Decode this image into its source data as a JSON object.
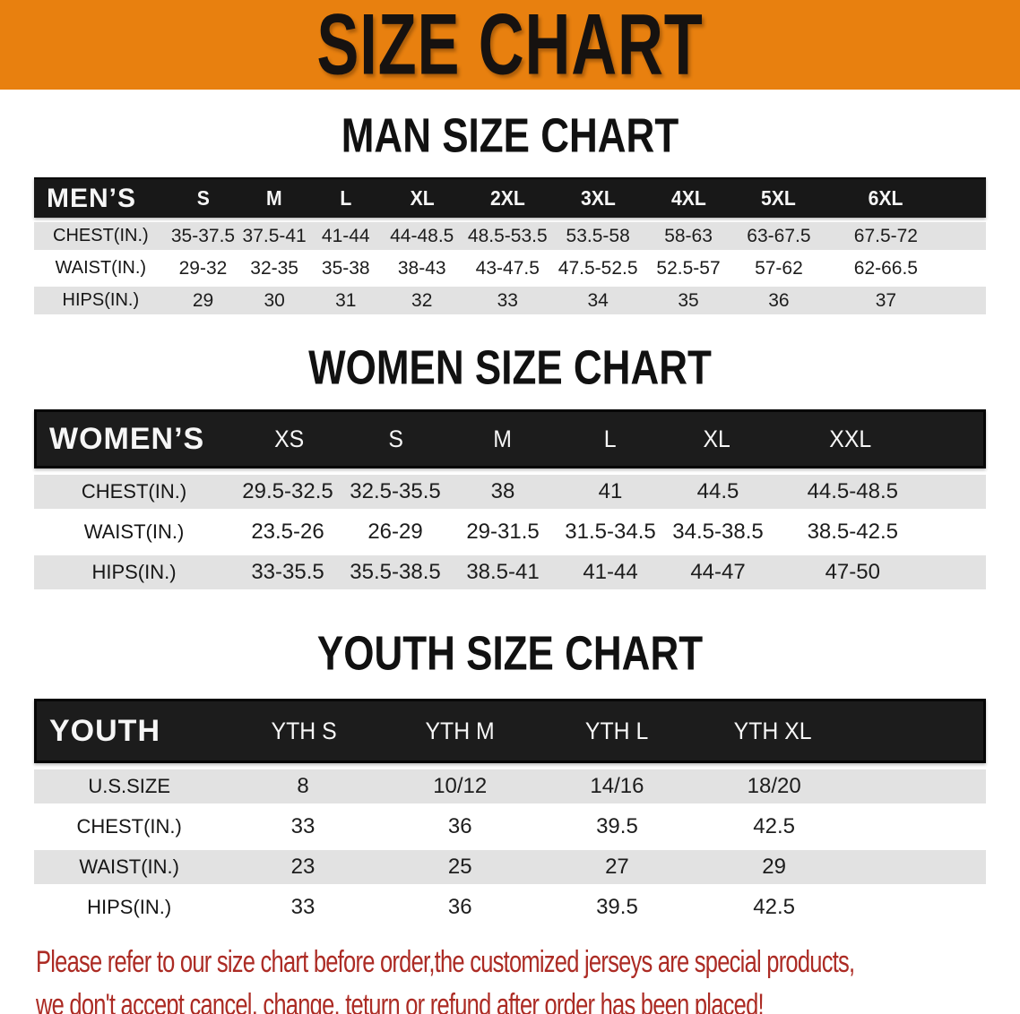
{
  "banner": {
    "title": "SIZE CHART"
  },
  "colors": {
    "banner_bg": "#E8800F",
    "banner_text": "#161210",
    "table_header_bg": "#181818",
    "row_alt_bg": "#E2E2E2",
    "disclaimer_text": "#AC2B24"
  },
  "sections": [
    {
      "heading": "MAN SIZE CHART",
      "table": {
        "corner": "MEN’S",
        "columns": [
          "S",
          "M",
          "L",
          "XL",
          "2XL",
          "3XL",
          "4XL",
          "5XL",
          "6XL"
        ],
        "rows": [
          {
            "label": "CHEST(IN.)",
            "values": [
              "35-37.5",
              "37.5-41",
              "41-44",
              "44-48.5",
              "48.5-53.5",
              "53.5-58",
              "58-63",
              "63-67.5",
              "67.5-72"
            ]
          },
          {
            "label": "WAIST(IN.)",
            "values": [
              "29-32",
              "32-35",
              "35-38",
              "38-43",
              "43-47.5",
              "47.5-52.5",
              "52.5-57",
              "57-62",
              "62-66.5"
            ]
          },
          {
            "label": "HIPS(IN.)",
            "values": [
              "29",
              "30",
              "31",
              "32",
              "33",
              "34",
              "35",
              "36",
              "37"
            ]
          }
        ]
      }
    },
    {
      "heading": "WOMEN SIZE CHART",
      "table": {
        "corner": "WOMEN’S",
        "columns": [
          "XS",
          "S",
          "M",
          "L",
          "XL",
          "XXL"
        ],
        "rows": [
          {
            "label": "CHEST(IN.)",
            "values": [
              "29.5-32.5",
              "32.5-35.5",
              "38",
              "41",
              "44.5",
              "44.5-48.5"
            ]
          },
          {
            "label": "WAIST(IN.)",
            "values": [
              "23.5-26",
              "26-29",
              "29-31.5",
              "31.5-34.5",
              "34.5-38.5",
              "38.5-42.5"
            ]
          },
          {
            "label": "HIPS(IN.)",
            "values": [
              "33-35.5",
              "35.5-38.5",
              "38.5-41",
              "41-44",
              "44-47",
              "47-50"
            ]
          }
        ]
      }
    },
    {
      "heading": "YOUTH SIZE CHART",
      "table": {
        "corner": "YOUTH",
        "columns": [
          "YTH S",
          "YTH M",
          "YTH L",
          "YTH XL"
        ],
        "rows": [
          {
            "label": "U.S.SIZE",
            "values": [
              "8",
              "10/12",
              "14/16",
              "18/20"
            ]
          },
          {
            "label": "CHEST(IN.)",
            "values": [
              "33",
              "36",
              "39.5",
              "42.5"
            ]
          },
          {
            "label": "WAIST(IN.)",
            "values": [
              "23",
              "25",
              "27",
              "29"
            ]
          },
          {
            "label": "HIPS(IN.)",
            "values": [
              "33",
              "36",
              "39.5",
              "42.5"
            ]
          }
        ]
      }
    }
  ],
  "disclaimer": {
    "line1": "Please refer to our size chart before order,the customized jerseys are special products,",
    "line2": "we don't accept cancel, change, teturn or refund after order has been placed!"
  }
}
